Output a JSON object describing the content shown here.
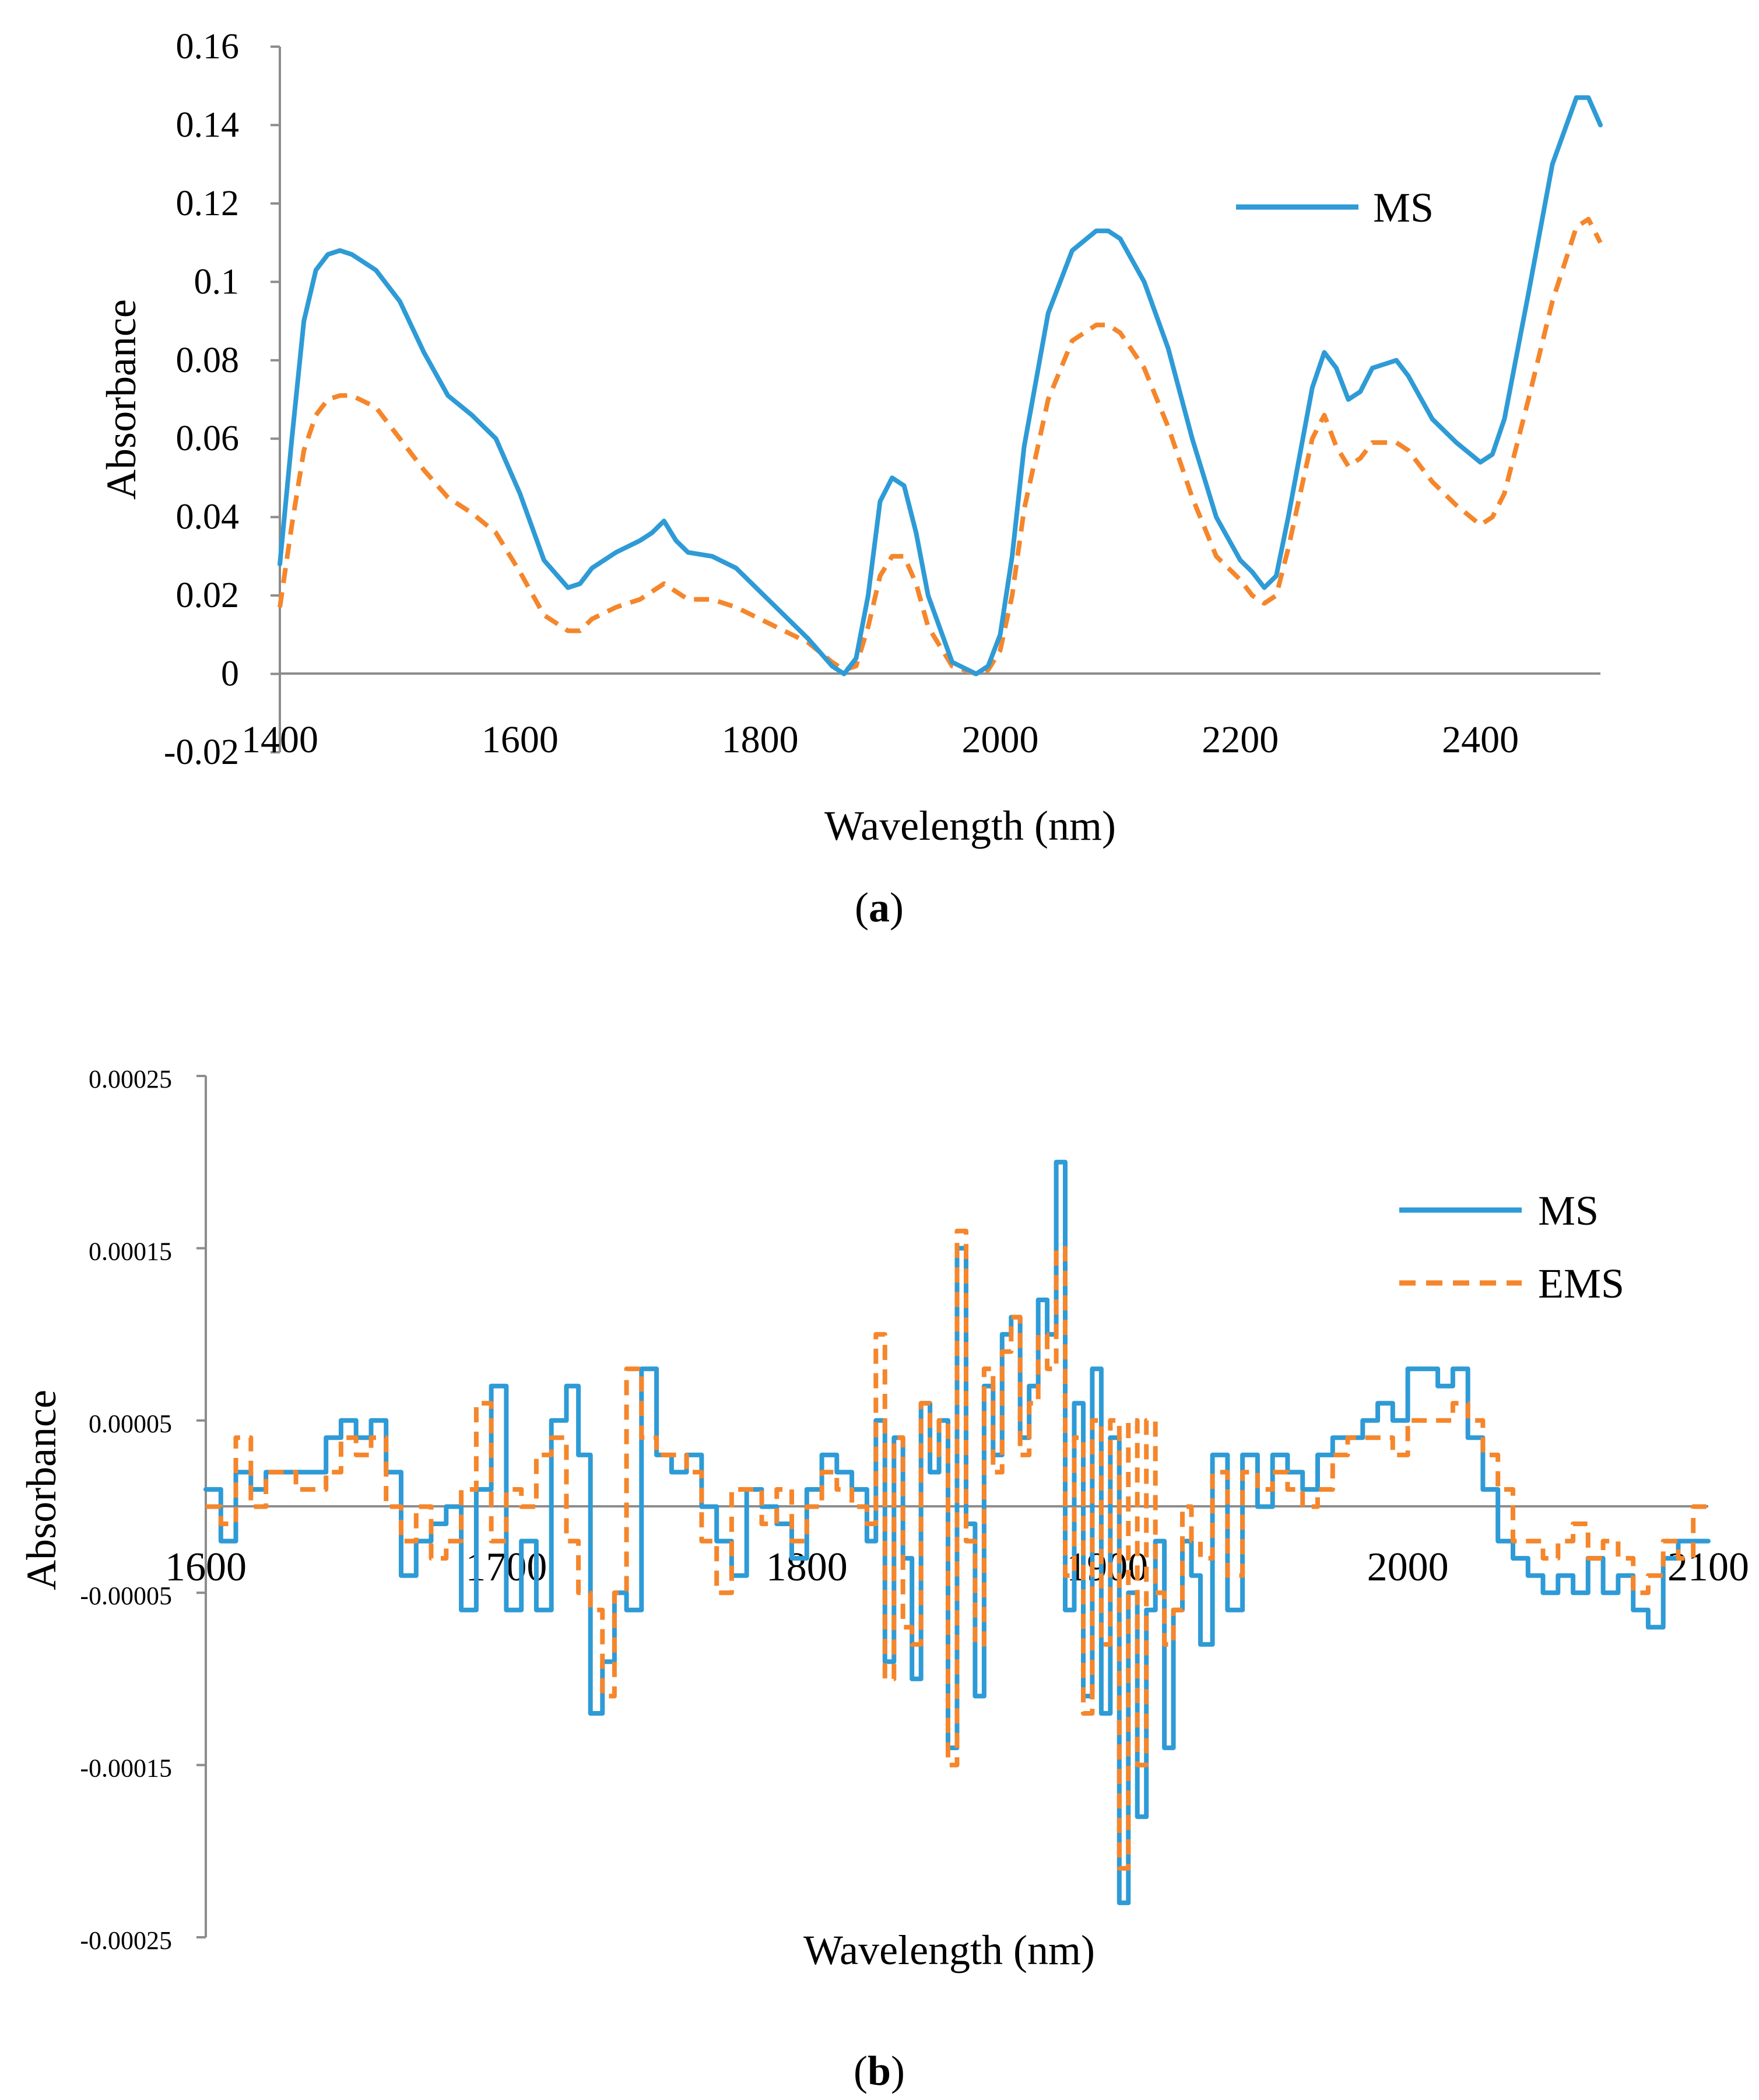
{
  "chart_data": [
    {
      "id": "a",
      "type": "line",
      "caption_label": "a",
      "title": "",
      "xlabel": "Wavelength (nm)",
      "ylabel": "Absorbance",
      "xlim": [
        1400,
        2500
      ],
      "ylim": [
        -0.02,
        0.16
      ],
      "xticks": [
        1400,
        1600,
        1800,
        2000,
        2200,
        2400
      ],
      "yticks": [
        0.16,
        0.14,
        0.12,
        0.1,
        0.08,
        0.06,
        0.04,
        0.02,
        0,
        -0.02
      ],
      "xtick_labels": [
        "1400",
        "1600",
        "1800",
        "2000",
        "2200",
        "2400"
      ],
      "ytick_labels": [
        "0.16",
        "0.14",
        "0.12",
        "0.1",
        "0.08",
        "0.06",
        "0.04",
        "0.02",
        "0",
        "-0.02"
      ],
      "legend": [
        "MS"
      ],
      "legend_position": "top-right",
      "series": [
        {
          "name": "MS",
          "color": "#2E9BD6",
          "dash": "solid",
          "x": [
            1400,
            1410,
            1420,
            1430,
            1440,
            1450,
            1460,
            1480,
            1500,
            1520,
            1540,
            1560,
            1580,
            1600,
            1620,
            1640,
            1650,
            1660,
            1680,
            1700,
            1710,
            1720,
            1730,
            1740,
            1760,
            1780,
            1800,
            1820,
            1840,
            1860,
            1870,
            1880,
            1890,
            1900,
            1910,
            1920,
            1930,
            1940,
            1960,
            1980,
            1990,
            2000,
            2010,
            2020,
            2040,
            2060,
            2080,
            2090,
            2100,
            2120,
            2140,
            2160,
            2180,
            2200,
            2210,
            2220,
            2230,
            2240,
            2260,
            2270,
            2280,
            2290,
            2300,
            2310,
            2320,
            2330,
            2340,
            2360,
            2380,
            2400,
            2410,
            2420,
            2440,
            2460,
            2480,
            2490,
            2500
          ],
          "values": [
            0.028,
            0.06,
            0.09,
            0.103,
            0.107,
            0.108,
            0.107,
            0.103,
            0.095,
            0.082,
            0.071,
            0.066,
            0.06,
            0.046,
            0.029,
            0.022,
            0.023,
            0.027,
            0.031,
            0.034,
            0.036,
            0.039,
            0.034,
            0.031,
            0.03,
            0.027,
            0.021,
            0.015,
            0.009,
            0.002,
            0.0,
            0.004,
            0.02,
            0.044,
            0.05,
            0.048,
            0.036,
            0.02,
            0.003,
            0.0,
            0.002,
            0.01,
            0.03,
            0.058,
            0.092,
            0.108,
            0.113,
            0.113,
            0.111,
            0.1,
            0.083,
            0.06,
            0.04,
            0.029,
            0.026,
            0.022,
            0.025,
            0.04,
            0.073,
            0.082,
            0.078,
            0.07,
            0.072,
            0.078,
            0.079,
            0.08,
            0.076,
            0.065,
            0.059,
            0.054,
            0.056,
            0.065,
            0.097,
            0.13,
            0.147,
            0.147,
            0.14
          ]
        },
        {
          "name": "",
          "color": "#F5862B",
          "dash": "dashed",
          "x": [
            1400,
            1410,
            1420,
            1430,
            1440,
            1450,
            1460,
            1480,
            1500,
            1520,
            1540,
            1560,
            1580,
            1600,
            1620,
            1640,
            1650,
            1660,
            1680,
            1700,
            1710,
            1720,
            1730,
            1740,
            1760,
            1780,
            1800,
            1820,
            1840,
            1860,
            1870,
            1880,
            1890,
            1900,
            1910,
            1920,
            1930,
            1940,
            1960,
            1980,
            1990,
            2000,
            2010,
            2020,
            2040,
            2060,
            2080,
            2090,
            2100,
            2120,
            2140,
            2160,
            2180,
            2200,
            2210,
            2220,
            2230,
            2240,
            2260,
            2270,
            2280,
            2290,
            2300,
            2310,
            2320,
            2330,
            2340,
            2360,
            2380,
            2400,
            2410,
            2420,
            2440,
            2460,
            2480,
            2490,
            2500
          ],
          "values": [
            0.017,
            0.038,
            0.057,
            0.066,
            0.07,
            0.071,
            0.071,
            0.068,
            0.06,
            0.052,
            0.045,
            0.041,
            0.036,
            0.026,
            0.015,
            0.011,
            0.011,
            0.014,
            0.017,
            0.019,
            0.021,
            0.023,
            0.021,
            0.019,
            0.019,
            0.017,
            0.014,
            0.011,
            0.008,
            0.003,
            0.001,
            0.002,
            0.012,
            0.025,
            0.03,
            0.03,
            0.023,
            0.012,
            0.002,
            0.0,
            0.001,
            0.006,
            0.02,
            0.042,
            0.07,
            0.085,
            0.089,
            0.089,
            0.087,
            0.078,
            0.063,
            0.045,
            0.03,
            0.024,
            0.02,
            0.018,
            0.02,
            0.032,
            0.06,
            0.066,
            0.058,
            0.053,
            0.055,
            0.059,
            0.059,
            0.059,
            0.057,
            0.049,
            0.043,
            0.038,
            0.04,
            0.046,
            0.07,
            0.095,
            0.114,
            0.116,
            0.11
          ]
        }
      ]
    },
    {
      "id": "b",
      "type": "line",
      "caption_label": "b",
      "title": "",
      "xlabel": "Wavelength (nm)",
      "ylabel": "Absorbance",
      "xlim": [
        1600,
        2100
      ],
      "ylim": [
        -0.00025,
        0.00025
      ],
      "xticks": [
        1600,
        1700,
        1800,
        1900,
        2000,
        2100
      ],
      "yticks": [
        0.00025,
        0.00015,
        5e-05,
        -5e-05,
        -0.00015,
        -0.00025
      ],
      "xtick_labels": [
        "1600",
        "1700",
        "1800",
        "1900",
        "2000",
        "2100"
      ],
      "ytick_labels": [
        "0.00025",
        "0.00015",
        "0.00005",
        "-0.00005",
        "-0.00015",
        "-0.00025"
      ],
      "legend": [
        "MS",
        "EMS"
      ],
      "legend_position": "top-right",
      "series": [
        {
          "name": "MS",
          "color": "#2E9BD6",
          "dash": "solid",
          "x": [
            1600,
            1605,
            1610,
            1615,
            1620,
            1630,
            1640,
            1645,
            1650,
            1655,
            1660,
            1665,
            1670,
            1675,
            1680,
            1685,
            1690,
            1695,
            1700,
            1705,
            1710,
            1715,
            1720,
            1724,
            1728,
            1732,
            1736,
            1740,
            1745,
            1750,
            1755,
            1760,
            1765,
            1770,
            1775,
            1780,
            1785,
            1790,
            1795,
            1800,
            1805,
            1810,
            1815,
            1820,
            1823,
            1826,
            1829,
            1832,
            1835,
            1838,
            1841,
            1844,
            1847,
            1850,
            1853,
            1856,
            1859,
            1862,
            1865,
            1868,
            1871,
            1874,
            1877,
            1880,
            1883,
            1886,
            1889,
            1892,
            1895,
            1898,
            1901,
            1904,
            1907,
            1910,
            1913,
            1916,
            1919,
            1922,
            1925,
            1928,
            1931,
            1935,
            1940,
            1945,
            1950,
            1955,
            1960,
            1965,
            1970,
            1975,
            1980,
            1985,
            1990,
            1995,
            2000,
            2005,
            2010,
            2015,
            2020,
            2025,
            2030,
            2035,
            2040,
            2045,
            2050,
            2055,
            2060,
            2065,
            2070,
            2075,
            2080,
            2085,
            2090,
            2095,
            2100
          ],
          "values": [
            1e-05,
            -2e-05,
            2e-05,
            1e-05,
            2e-05,
            2e-05,
            4e-05,
            5e-05,
            4e-05,
            5e-05,
            2e-05,
            -4e-05,
            -2e-05,
            -1e-05,
            0.0,
            -6e-05,
            1e-05,
            7e-05,
            -6e-05,
            -2e-05,
            -6e-05,
            5e-05,
            7e-05,
            3e-05,
            -0.00012,
            -9e-05,
            -5e-05,
            -6e-05,
            8e-05,
            3e-05,
            2e-05,
            3e-05,
            0.0,
            -2e-05,
            -4e-05,
            1e-05,
            0.0,
            -1e-05,
            -3e-05,
            1e-05,
            3e-05,
            2e-05,
            1e-05,
            -2e-05,
            5e-05,
            -9e-05,
            4e-05,
            -3e-05,
            -0.0001,
            6e-05,
            2e-05,
            5e-05,
            -0.00014,
            0.00015,
            -1e-05,
            -0.00011,
            7e-05,
            3e-05,
            0.0001,
            0.00011,
            4e-05,
            7e-05,
            0.00012,
            0.0001,
            0.0002,
            -6e-05,
            6e-05,
            -0.00011,
            8e-05,
            -0.00012,
            4e-05,
            -0.00023,
            -5e-05,
            -0.00018,
            -6e-05,
            -2e-05,
            -0.00014,
            -6e-05,
            -2e-05,
            -4e-05,
            -8e-05,
            3e-05,
            -6e-05,
            3e-05,
            0.0,
            3e-05,
            2e-05,
            1e-05,
            3e-05,
            4e-05,
            4e-05,
            5e-05,
            6e-05,
            5e-05,
            8e-05,
            8e-05,
            7e-05,
            8e-05,
            4e-05,
            1e-05,
            -2e-05,
            -3e-05,
            -4e-05,
            -5e-05,
            -4e-05,
            -5e-05,
            -3e-05,
            -5e-05,
            -4e-05,
            -6e-05,
            -7e-05,
            -3e-05,
            -2e-05,
            -2e-05,
            -2e-05
          ]
        },
        {
          "name": "EMS",
          "color": "#F5862B",
          "dash": "dashed",
          "x": [
            1600,
            1605,
            1610,
            1615,
            1620,
            1630,
            1640,
            1645,
            1650,
            1655,
            1660,
            1665,
            1670,
            1675,
            1680,
            1685,
            1690,
            1695,
            1700,
            1705,
            1710,
            1715,
            1720,
            1724,
            1728,
            1732,
            1736,
            1740,
            1745,
            1750,
            1755,
            1760,
            1765,
            1770,
            1775,
            1780,
            1785,
            1790,
            1795,
            1800,
            1805,
            1810,
            1815,
            1820,
            1823,
            1826,
            1829,
            1832,
            1835,
            1838,
            1841,
            1844,
            1847,
            1850,
            1853,
            1856,
            1859,
            1862,
            1865,
            1868,
            1871,
            1874,
            1877,
            1880,
            1883,
            1886,
            1889,
            1892,
            1895,
            1898,
            1901,
            1904,
            1907,
            1910,
            1913,
            1916,
            1919,
            1922,
            1925,
            1928,
            1931,
            1935,
            1940,
            1945,
            1950,
            1955,
            1960,
            1965,
            1970,
            1975,
            1980,
            1985,
            1990,
            1995,
            2000,
            2005,
            2010,
            2015,
            2020,
            2025,
            2030,
            2035,
            2040,
            2045,
            2050,
            2055,
            2060,
            2065,
            2070,
            2075,
            2080,
            2085,
            2090,
            2095,
            2100
          ],
          "values": [
            0.0,
            -1e-05,
            4e-05,
            0.0,
            2e-05,
            1e-05,
            2e-05,
            4e-05,
            3e-05,
            4e-05,
            0.0,
            -2e-05,
            0.0,
            -3e-05,
            -2e-05,
            1e-05,
            6e-05,
            -2e-05,
            1e-05,
            0.0,
            3e-05,
            4e-05,
            -2e-05,
            -5e-05,
            -6e-05,
            -0.00011,
            -5e-05,
            8e-05,
            4e-05,
            3e-05,
            3e-05,
            2e-05,
            -2e-05,
            -5e-05,
            1e-05,
            1e-05,
            -1e-05,
            1e-05,
            -2e-05,
            0.0,
            2e-05,
            1e-05,
            0.0,
            -1e-05,
            0.0001,
            -0.0001,
            4e-05,
            -7e-05,
            -8e-05,
            6e-05,
            3e-05,
            5e-05,
            -0.00015,
            0.00016,
            -2e-05,
            -8e-05,
            8e-05,
            2e-05,
            9e-05,
            0.00011,
            3e-05,
            6e-05,
            0.0001,
            8e-05,
            0.00015,
            -4e-05,
            4e-05,
            -0.00012,
            5e-05,
            -8e-05,
            5e-05,
            -0.00021,
            5e-05,
            -0.00015,
            5e-05,
            -5e-05,
            -8e-05,
            -6e-05,
            0.0,
            -2e-05,
            -3e-05,
            2e-05,
            -4e-05,
            2e-05,
            1e-05,
            2e-05,
            1e-05,
            0.0,
            1e-05,
            3e-05,
            4e-05,
            4e-05,
            4e-05,
            3e-05,
            5e-05,
            5e-05,
            5e-05,
            6e-05,
            5e-05,
            3e-05,
            1e-05,
            -2e-05,
            -2e-05,
            -3e-05,
            -2e-05,
            -1e-05,
            -3e-05,
            -2e-05,
            -3e-05,
            -5e-05,
            -4e-05,
            -2e-05,
            -3e-05,
            0.0,
            0.0
          ]
        }
      ]
    }
  ]
}
